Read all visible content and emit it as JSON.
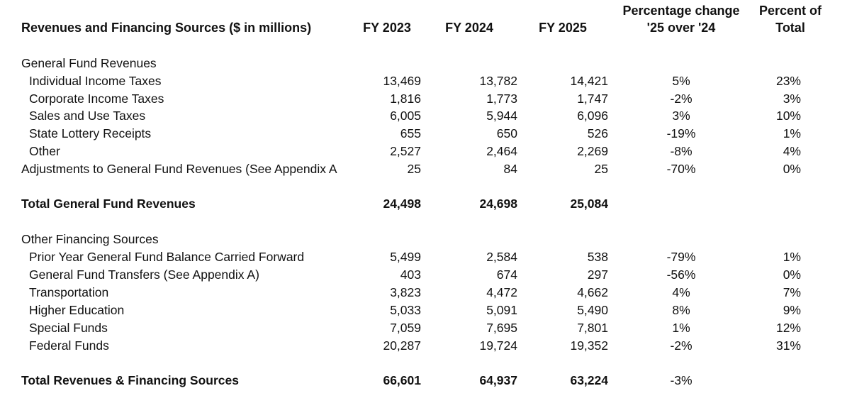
{
  "header": {
    "title": "Revenues and Financing Sources ($ in millions)",
    "fy2023": "FY 2023",
    "fy2024": "FY 2024",
    "fy2025": "FY 2025",
    "pct_change_line1": "Percentage change",
    "pct_change_line2": "'25 over '24",
    "pct_total_line1": "Percent of",
    "pct_total_line2": "Total"
  },
  "general_fund": {
    "section_label": "General Fund Revenues",
    "rows": [
      {
        "label": "Individual Income Taxes",
        "fy2023": "13,469",
        "fy2024": "13,782",
        "fy2025": "14,421",
        "pct_change": "5%",
        "pct_total": "23%"
      },
      {
        "label": "Corporate Income Taxes",
        "fy2023": "1,816",
        "fy2024": "1,773",
        "fy2025": "1,747",
        "pct_change": "-2%",
        "pct_total": "3%"
      },
      {
        "label": "Sales and Use Taxes",
        "fy2023": "6,005",
        "fy2024": "5,944",
        "fy2025": "6,096",
        "pct_change": "3%",
        "pct_total": "10%"
      },
      {
        "label": "State Lottery Receipts",
        "fy2023": "655",
        "fy2024": "650",
        "fy2025": "526",
        "pct_change": "-19%",
        "pct_total": "1%"
      },
      {
        "label": "Other",
        "fy2023": "2,527",
        "fy2024": "2,464",
        "fy2025": "2,269",
        "pct_change": "-8%",
        "pct_total": "4%"
      },
      {
        "label": "Adjustments to General Fund Revenues (See Appendix A",
        "fy2023": "25",
        "fy2024": "84",
        "fy2025": "25",
        "pct_change": "-70%",
        "pct_total": "0%"
      }
    ],
    "total": {
      "label": "Total General Fund Revenues",
      "fy2023": "24,498",
      "fy2024": "24,698",
      "fy2025": "25,084"
    }
  },
  "other_financing": {
    "section_label": "Other Financing Sources",
    "rows": [
      {
        "label": "Prior Year General Fund Balance Carried Forward",
        "fy2023": "5,499",
        "fy2024": "2,584",
        "fy2025": "538",
        "pct_change": "-79%",
        "pct_total": "1%"
      },
      {
        "label": "General Fund Transfers (See Appendix A)",
        "fy2023": "403",
        "fy2024": "674",
        "fy2025": "297",
        "pct_change": "-56%",
        "pct_total": "0%"
      },
      {
        "label": "Transportation",
        "fy2023": "3,823",
        "fy2024": "4,472",
        "fy2025": "4,662",
        "pct_change": "4%",
        "pct_total": "7%"
      },
      {
        "label": "Higher Education",
        "fy2023": "5,033",
        "fy2024": "5,091",
        "fy2025": "5,490",
        "pct_change": "8%",
        "pct_total": "9%"
      },
      {
        "label": "Special Funds",
        "fy2023": "7,059",
        "fy2024": "7,695",
        "fy2025": "7,801",
        "pct_change": "1%",
        "pct_total": "12%"
      },
      {
        "label": "Federal Funds",
        "fy2023": "20,287",
        "fy2024": "19,724",
        "fy2025": "19,352",
        "pct_change": "-2%",
        "pct_total": "31%"
      }
    ]
  },
  "grand_total": {
    "label": "Total Revenues & Financing Sources",
    "fy2023": "66,601",
    "fy2024": "64,937",
    "fy2025": "63,224",
    "pct_change": "-3%"
  }
}
